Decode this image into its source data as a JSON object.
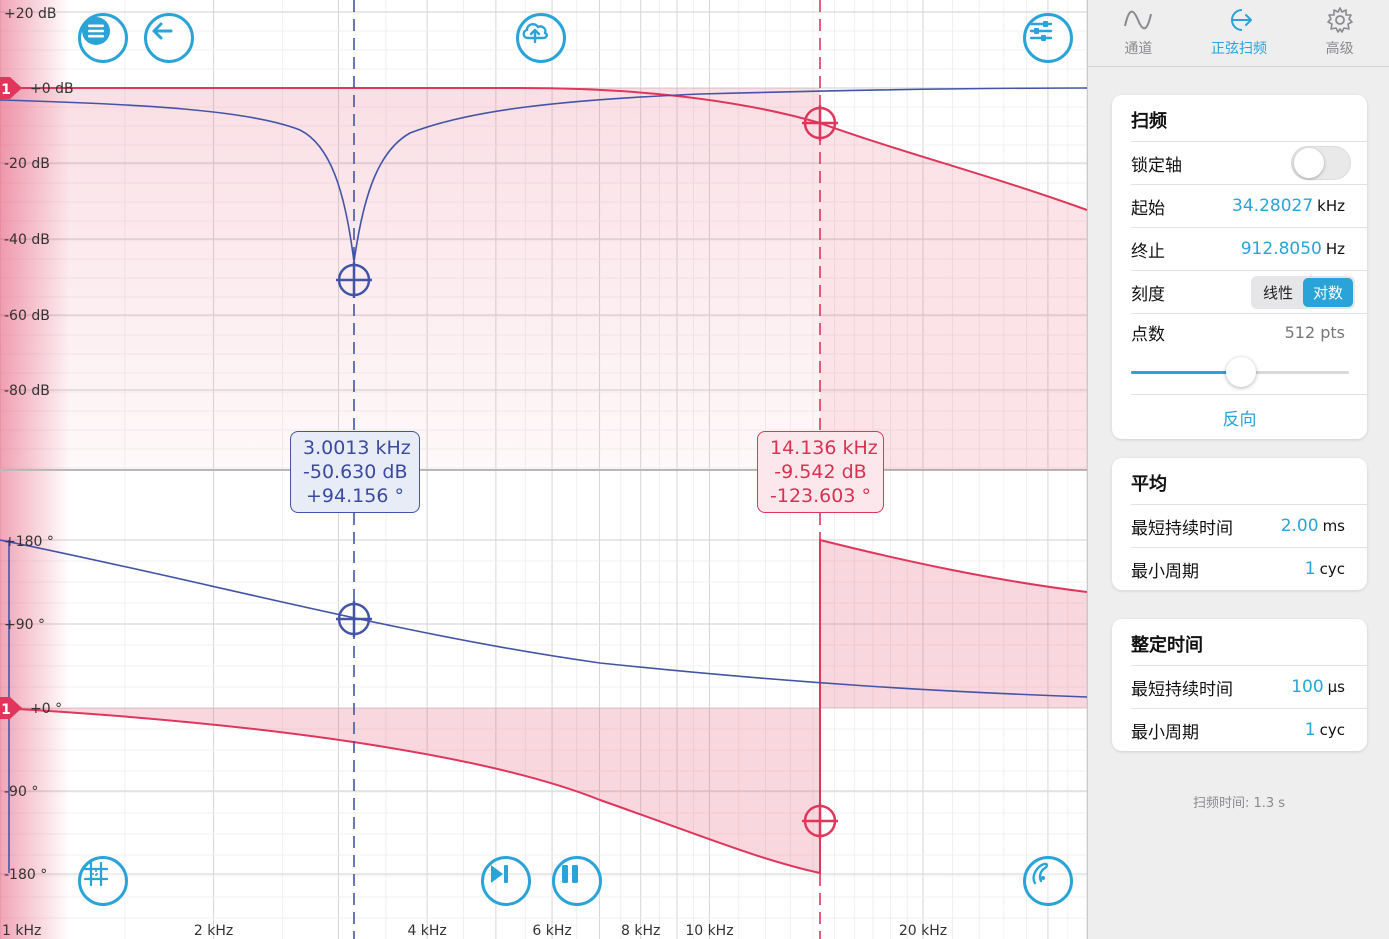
{
  "plot": {
    "mag_ticks": [
      "+20 dB",
      "+0 dB",
      "-20 dB",
      "-40 dB",
      "-60 dB",
      "-80 dB"
    ],
    "phase_ticks": [
      "+180 °",
      "+90 °",
      "+0 °",
      "-90 °",
      "-180 °"
    ],
    "freq_ticks": [
      "1 kHz",
      "2 kHz",
      "4 kHz",
      "6 kHz",
      "8 kHz",
      "10 kHz",
      "20 kHz"
    ],
    "channel_marker": "1",
    "colors": {
      "channel1": "#e0365c",
      "channel2": "#4354a8",
      "accent": "#2aa3d8"
    }
  },
  "cursor_blue": {
    "freq": "3.0013 kHz",
    "mag": "-50.630 dB",
    "phase": "+94.156 °"
  },
  "cursor_red": {
    "freq": "14.136 kHz",
    "mag": "-9.542 dB",
    "phase": "-123.603 °"
  },
  "toolbar": {
    "menu_icon": "menu-icon",
    "back_icon": "back-arrow-icon",
    "upload_icon": "cloud-upload-icon",
    "settings_icon": "sliders-icon",
    "grid_icon": "grid-icon",
    "step_icon": "step-forward-icon",
    "pause_icon": "pause-icon",
    "probe_icon": "probe-icon"
  },
  "sidebar": {
    "tabs": [
      {
        "label": "通道",
        "icon": "wave-icon",
        "active": false
      },
      {
        "label": "正弦扫频",
        "icon": "sweep-icon",
        "active": true
      },
      {
        "label": "高级",
        "icon": "gear-icon",
        "active": false
      }
    ],
    "sweep": {
      "title": "扫频",
      "lock_axis_label": "锁定轴",
      "start_label": "起始",
      "start_value": "34.28027",
      "start_unit": "kHz",
      "stop_label": "终止",
      "stop_value": "912.8050",
      "stop_unit": "Hz",
      "scale_label": "刻度",
      "scale_linear": "线性",
      "scale_log": "对数",
      "points_label": "点数",
      "points_value": "512 pts",
      "reverse_label": "反向"
    },
    "average": {
      "title": "平均",
      "min_duration_label": "最短持续时间",
      "min_duration_value": "2.00",
      "min_duration_unit": "ms",
      "min_cycles_label": "最小周期",
      "min_cycles_value": "1",
      "min_cycles_unit": "cyc"
    },
    "settling": {
      "title": "整定时间",
      "min_duration_label": "最短持续时间",
      "min_duration_value": "100",
      "min_duration_unit": "µs",
      "min_cycles_label": "最小周期",
      "min_cycles_value": "1",
      "min_cycles_unit": "cyc"
    },
    "sweep_time": "扫频时间: 1.3 s"
  }
}
